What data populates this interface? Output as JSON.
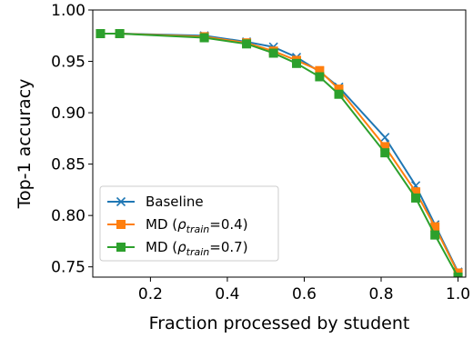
{
  "chart_data": {
    "type": "line",
    "title": "",
    "xlabel": "Fraction processed by student",
    "ylabel": "Top-1 accuracy",
    "xlim": [
      0.05,
      1.02
    ],
    "ylim": [
      0.74,
      1.0
    ],
    "xticks": [
      0.2,
      0.4,
      0.6,
      0.8,
      1.0
    ],
    "xtick_labels": [
      "0.2",
      "0.4",
      "0.6",
      "0.8",
      "1.0"
    ],
    "yticks": [
      0.75,
      0.8,
      0.85,
      0.9,
      0.95,
      1.0
    ],
    "ytick_labels": [
      "0.75",
      "0.80",
      "0.85",
      "0.90",
      "0.95",
      "1.00"
    ],
    "grid": false,
    "legend_position": "lower-left",
    "series": [
      {
        "name": "Baseline",
        "color": "#1f77b4",
        "marker": "x",
        "x": [
          0.07,
          0.12,
          0.34,
          0.45,
          0.52,
          0.58,
          0.64,
          0.69,
          0.81,
          0.89,
          0.94,
          1.0
        ],
        "y": [
          0.977,
          0.977,
          0.975,
          0.969,
          0.964,
          0.954,
          0.94,
          0.925,
          0.876,
          0.829,
          0.791,
          0.745
        ]
      },
      {
        "name_prefix": "MD (",
        "name_symbol": "ρ",
        "name_sub": "train",
        "name_suffix": "=0.4)",
        "color": "#ff7f0e",
        "marker": "square",
        "x": [
          0.07,
          0.12,
          0.34,
          0.45,
          0.52,
          0.58,
          0.64,
          0.69,
          0.81,
          0.89,
          0.94,
          1.0
        ],
        "y": [
          0.977,
          0.977,
          0.974,
          0.968,
          0.96,
          0.951,
          0.941,
          0.923,
          0.867,
          0.823,
          0.789,
          0.744
        ]
      },
      {
        "name_prefix": "MD (",
        "name_symbol": "ρ",
        "name_sub": "train",
        "name_suffix": "=0.7)",
        "color": "#2ca02c",
        "marker": "square",
        "x": [
          0.07,
          0.12,
          0.34,
          0.45,
          0.52,
          0.58,
          0.64,
          0.69,
          0.81,
          0.89,
          0.94,
          1.0
        ],
        "y": [
          0.977,
          0.977,
          0.973,
          0.967,
          0.958,
          0.948,
          0.935,
          0.918,
          0.861,
          0.817,
          0.781,
          0.74
        ]
      }
    ]
  }
}
